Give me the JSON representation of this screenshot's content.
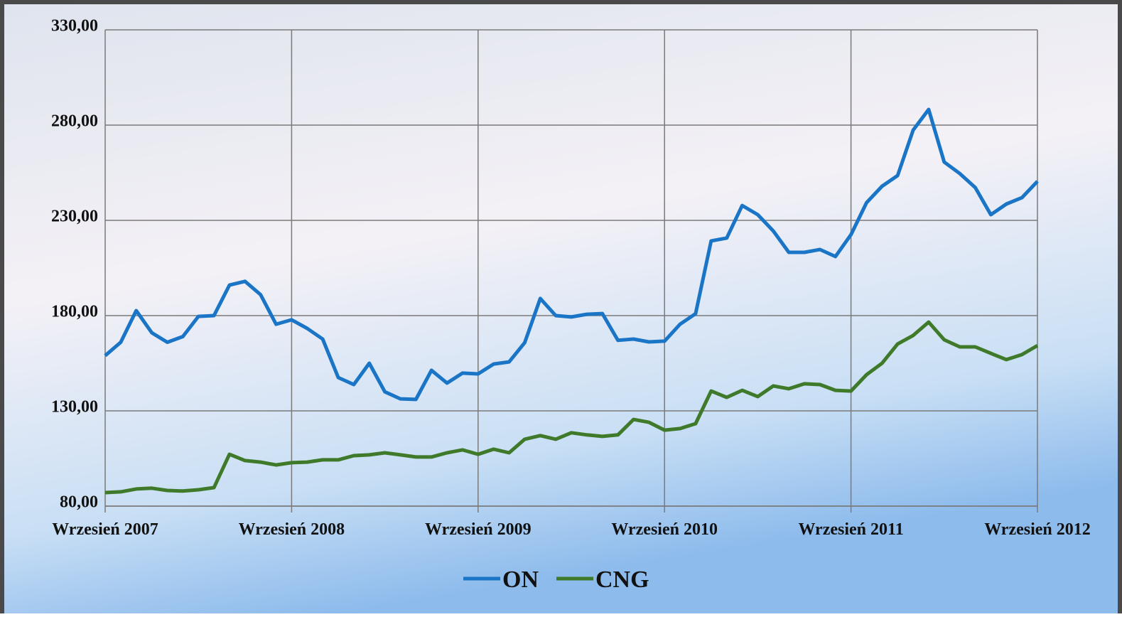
{
  "chart_data": {
    "type": "line",
    "categories": [
      "Wrzesień 2007",
      null,
      null,
      null,
      null,
      null,
      null,
      null,
      null,
      null,
      null,
      null,
      "Wrzesień 2008",
      null,
      null,
      null,
      null,
      null,
      null,
      null,
      null,
      null,
      null,
      null,
      "Wrzesień 2009",
      null,
      null,
      null,
      null,
      null,
      null,
      null,
      null,
      null,
      null,
      null,
      "Wrzesień 2010",
      null,
      null,
      null,
      null,
      null,
      null,
      null,
      null,
      null,
      null,
      null,
      "Wrzesień 2011",
      null,
      null,
      null,
      null,
      null,
      null,
      null,
      null,
      null,
      null,
      null,
      "Wrzesień 2012"
    ],
    "series": [
      {
        "name": "ON",
        "color": "#1a75c6",
        "values": [
          159,
          166,
          182.6,
          171,
          166,
          169,
          179.6,
          180,
          196,
          198,
          191,
          175.5,
          177.8,
          173.3,
          167.7,
          147.5,
          143.8,
          155,
          140,
          136.3,
          136,
          151.3,
          144.6,
          149.8,
          149.4,
          154.6,
          155.7,
          165.8,
          189,
          180,
          179.3,
          180.7,
          181.1,
          167,
          167.7,
          166.2,
          166.6,
          175.5,
          181,
          219.2,
          220.7,
          237.8,
          233,
          224.4,
          213.2,
          213.2,
          214.7,
          211,
          222.5,
          239.3,
          247.9,
          253.5,
          277.4,
          288.2,
          260.6,
          254.6,
          247.2,
          233,
          238.6,
          241.9,
          250.5
        ]
      },
      {
        "name": "CNG",
        "color": "#3f7a2a",
        "values": [
          87.1,
          87.5,
          89,
          89.4,
          88.2,
          87.9,
          88.6,
          89.7,
          107.2,
          103.9,
          103.1,
          101.6,
          102.8,
          103.1,
          104.3,
          104.3,
          106.5,
          106.9,
          108,
          106.9,
          105.8,
          105.8,
          108,
          109.5,
          107.2,
          109.9,
          108,
          115.1,
          117,
          115.1,
          118.5,
          117.4,
          116.6,
          117.4,
          125.5,
          124,
          119.9,
          120.7,
          123.3,
          140.4,
          137.1,
          140.8,
          137.5,
          143.1,
          141.6,
          144.2,
          143.8,
          140.8,
          140.4,
          149,
          155,
          165.1,
          169.6,
          176.6,
          167.3,
          163.6,
          163.6,
          160.2,
          156.9,
          159.5,
          164.3
        ]
      }
    ],
    "ylim": [
      80,
      330
    ],
    "yticks": [
      {
        "value": 80,
        "label": "80,00"
      },
      {
        "value": 130,
        "label": "130,00"
      },
      {
        "value": 180,
        "label": "180,00"
      },
      {
        "value": 230,
        "label": "230,00"
      },
      {
        "value": 280,
        "label": "280,00"
      },
      {
        "value": 330,
        "label": "330,00"
      }
    ],
    "grid": true,
    "legend": "bottom"
  }
}
